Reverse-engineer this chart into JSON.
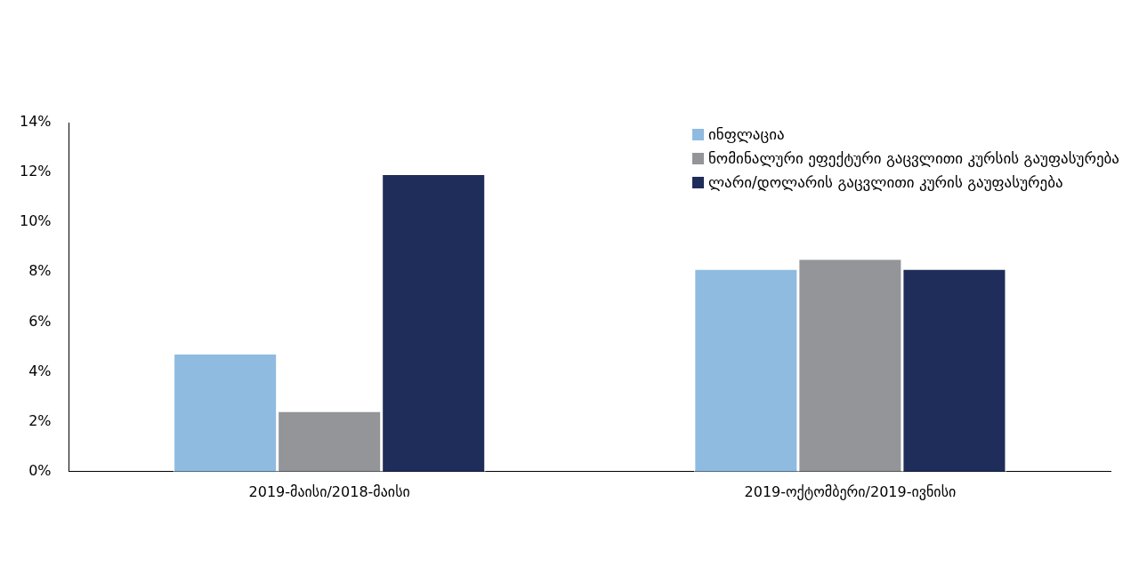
{
  "chart_data": {
    "type": "bar",
    "categories": [
      "2019-მაისი/2018-მაისი",
      "2019-ოქტომბერი/2019-ივნისი"
    ],
    "series": [
      {
        "name": "ინფლაცია",
        "color": "#8fbbe0",
        "values": [
          4.7,
          8.1
        ]
      },
      {
        "name": "ნომინალური ეფექტური გაცვლითი კურსის გაუფასურება",
        "color": "#939598",
        "values": [
          2.4,
          8.5
        ]
      },
      {
        "name": "ლარი/დოლარის გაცვლითი კურის გაუფასურება",
        "color": "#1e2d59",
        "values": [
          11.9,
          8.1
        ]
      }
    ],
    "ylim": [
      0,
      14
    ],
    "yticks": [
      {
        "value": 0,
        "label": "0%"
      },
      {
        "value": 2,
        "label": "2%"
      },
      {
        "value": 4,
        "label": "4%"
      },
      {
        "value": 6,
        "label": "6%"
      },
      {
        "value": 8,
        "label": "8%"
      },
      {
        "value": 10,
        "label": "10%"
      },
      {
        "value": 12,
        "label": "12%"
      },
      {
        "value": 14,
        "label": "14%"
      }
    ],
    "grid": false,
    "legend": "top right"
  }
}
